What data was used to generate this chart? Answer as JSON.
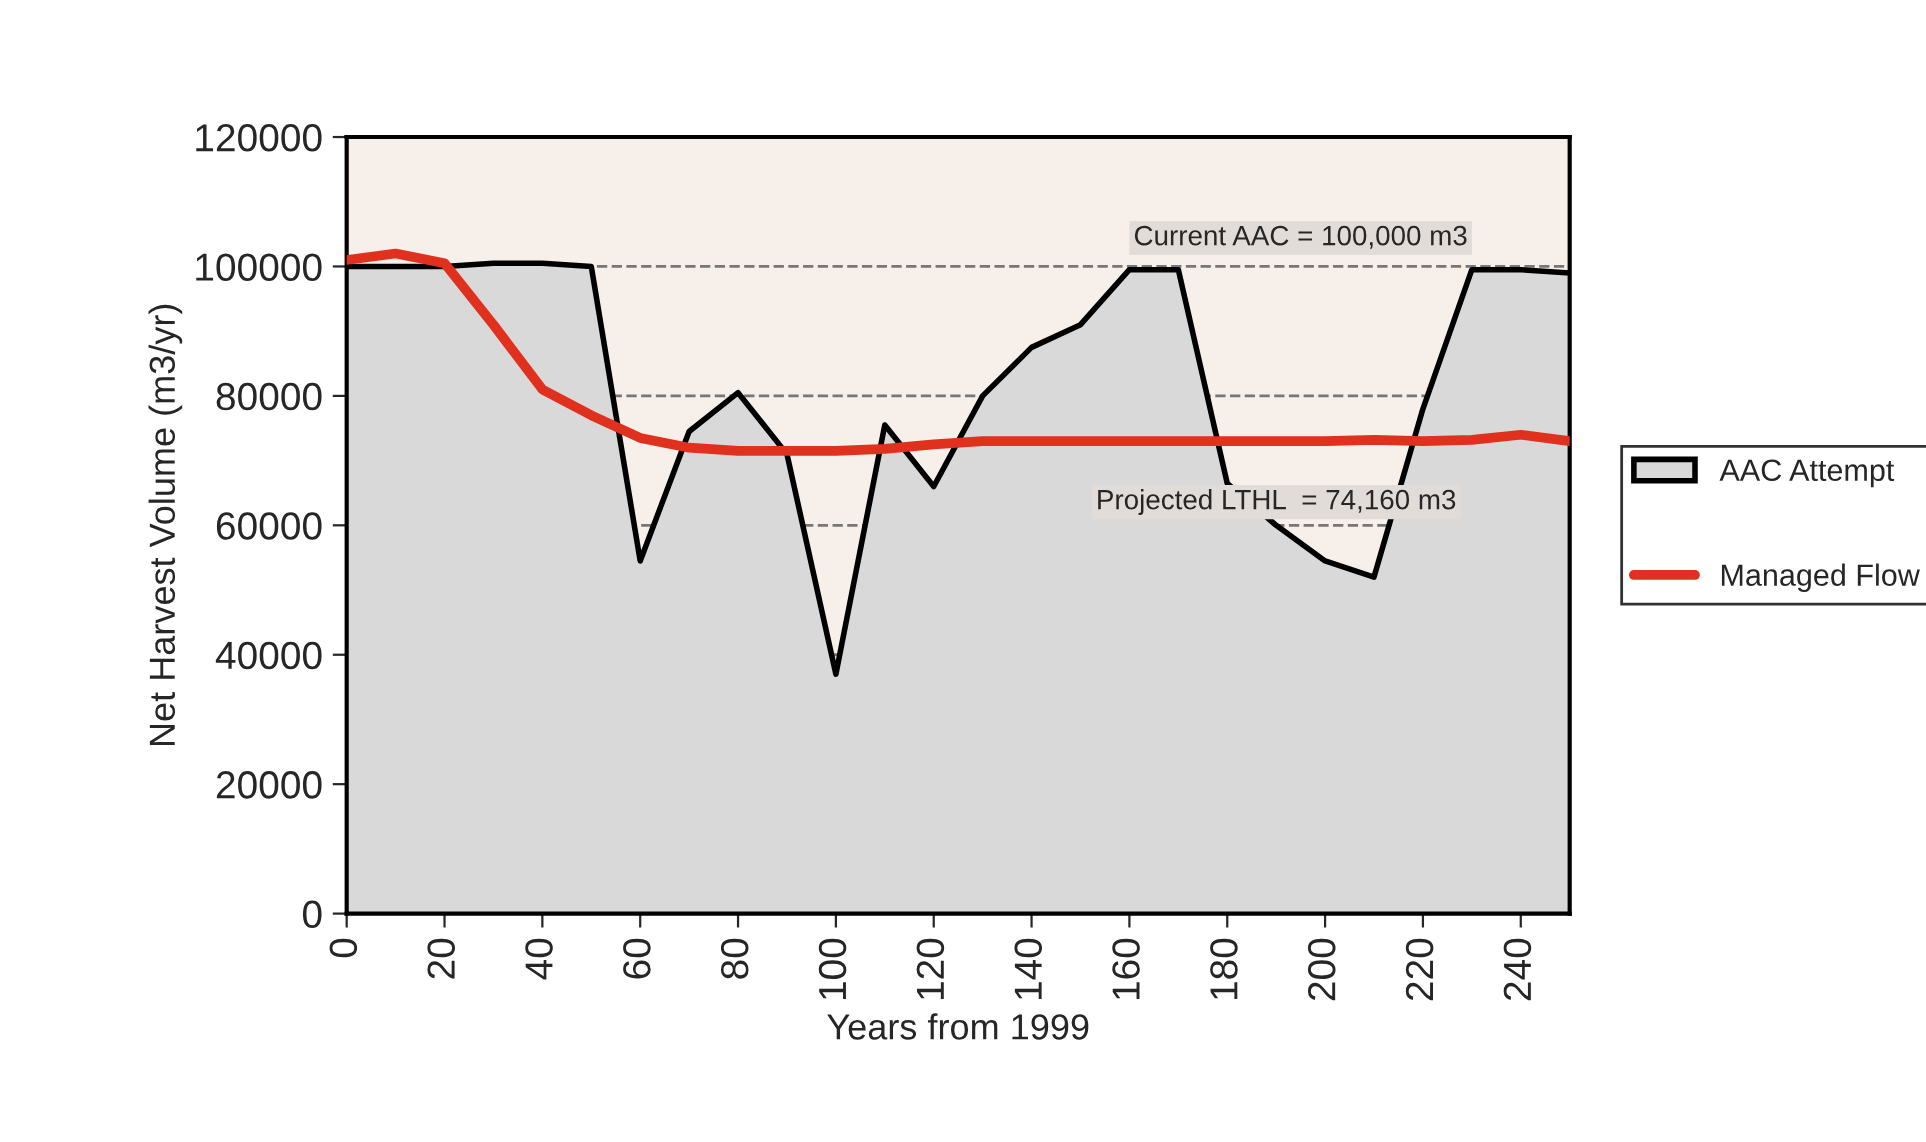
{
  "chart_data": {
    "type": "line",
    "xlabel": "Years from 1999",
    "ylabel": "Net Harvest Volume (m3/yr)",
    "x": [
      0,
      10,
      20,
      30,
      40,
      50,
      60,
      70,
      80,
      90,
      100,
      110,
      120,
      130,
      140,
      150,
      160,
      170,
      180,
      190,
      200,
      210,
      220,
      230,
      240,
      250
    ],
    "series": [
      {
        "name": "AAC Attempt",
        "type": "area",
        "color": "#d9d9d9",
        "values": [
          100000,
          100000,
          100000,
          100500,
          100500,
          100000,
          54500,
          74500,
          80500,
          71000,
          37000,
          75500,
          66000,
          80000,
          87500,
          91000,
          99500,
          99500,
          66500,
          60000,
          54500,
          52000,
          78000,
          99500,
          99500,
          99000
        ]
      },
      {
        "name": "Managed Flow",
        "color": "#e0301e",
        "values": [
          101000,
          102000,
          100500,
          91000,
          81000,
          77000,
          73500,
          72000,
          71500,
          71500,
          71500,
          71800,
          72500,
          73000,
          73000,
          73000,
          73000,
          73000,
          73000,
          73000,
          73000,
          73200,
          73000,
          73200,
          74000,
          73000
        ]
      }
    ],
    "xlim": [
      0,
      250
    ],
    "xticks": [
      0,
      20,
      40,
      60,
      80,
      100,
      120,
      140,
      160,
      180,
      200,
      220,
      240
    ],
    "ylim": [
      0,
      120000
    ],
    "yticks": [
      0,
      20000,
      40000,
      60000,
      80000,
      100000,
      120000
    ],
    "grid": "y",
    "legend": "right",
    "line_style": "solid",
    "marker": "none",
    "annotations": [
      "Current AAC = 100,000 m3",
      "Projected LTHL  = 74,160 m3"
    ]
  }
}
